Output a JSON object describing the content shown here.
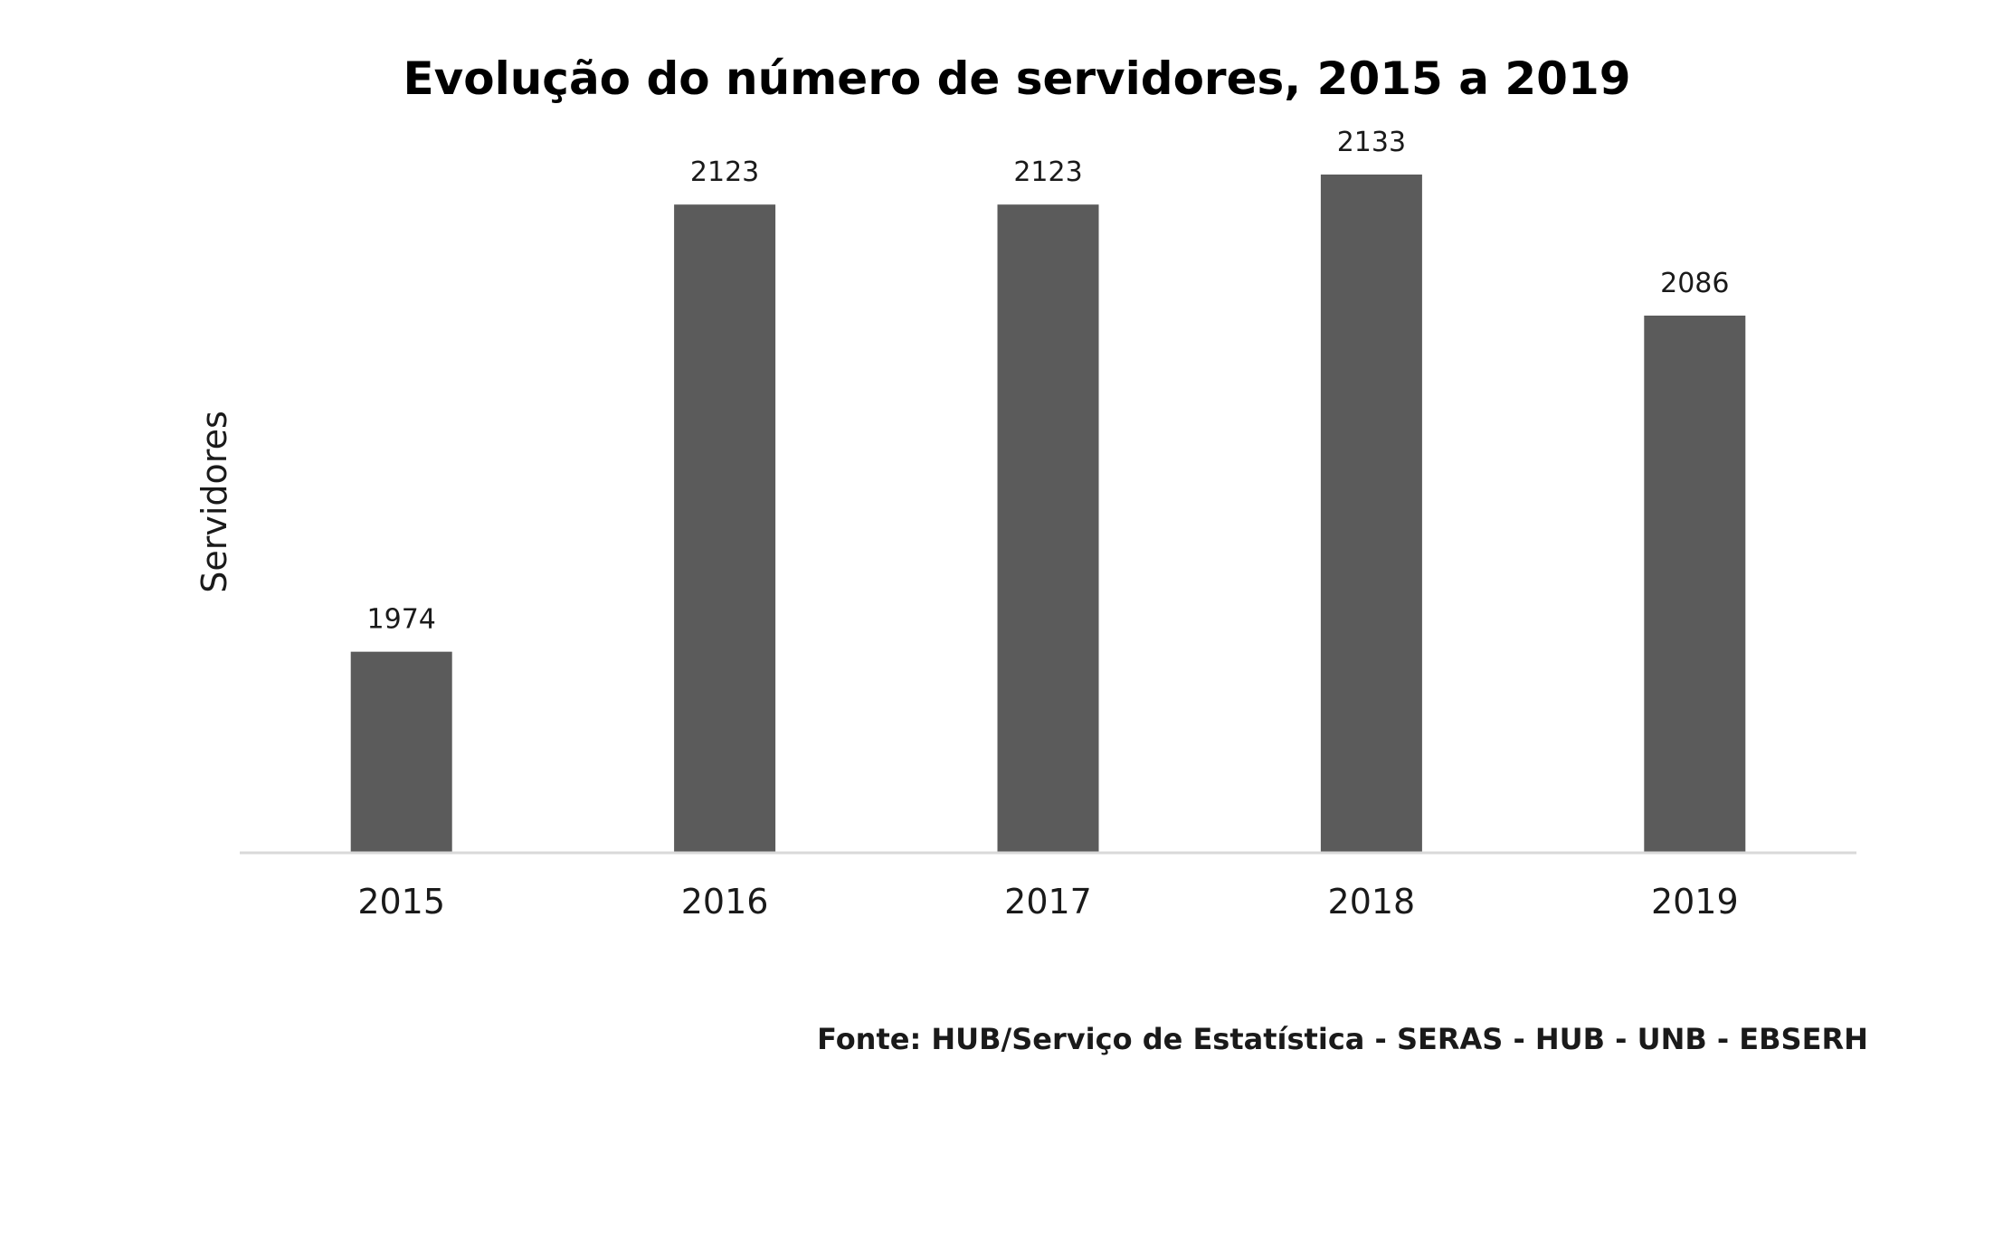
{
  "chart_data": {
    "type": "bar",
    "title": "Evolução do número de servidores, 2015 a 2019",
    "xlabel": "",
    "ylabel": "Servidores",
    "categories": [
      "2015",
      "2016",
      "2017",
      "2018",
      "2019"
    ],
    "values": [
      1974,
      2123,
      2123,
      2133,
      2086
    ],
    "ylim": [
      1907,
      2155
    ],
    "grid": false,
    "bar_color": "#5b5b5b",
    "axis_color": "#d9d9d9"
  },
  "source": "Fonte: HUB/Serviço de Estatística - SERAS - HUB - UNB - EBSERH"
}
